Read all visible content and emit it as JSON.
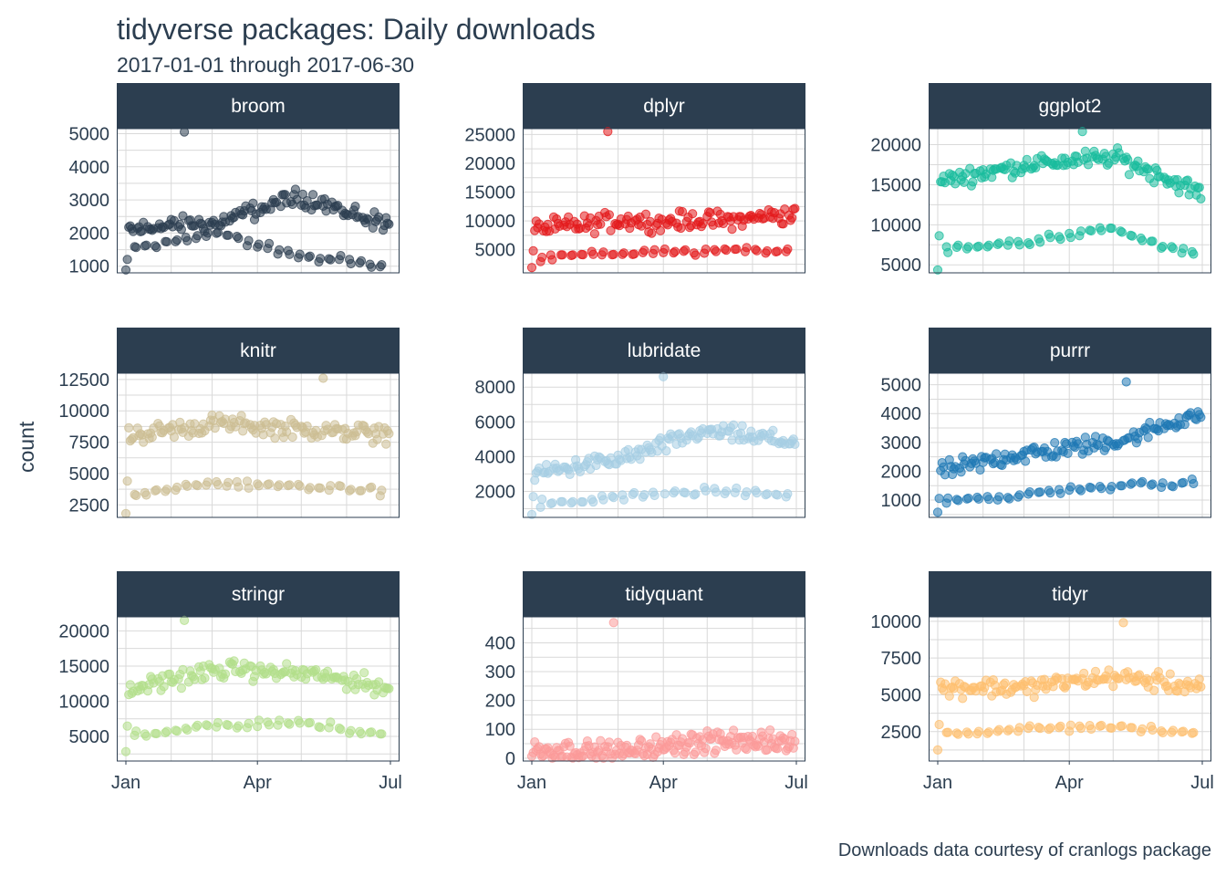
{
  "title": "tidyverse packages: Daily downloads",
  "subtitle": "2017-01-01 through 2017-06-30",
  "caption": "Downloads data courtesy of cranlogs package",
  "chart_data": {
    "type": "scatter",
    "facets": "wrap 3x3",
    "ylabel": "count",
    "xlabel": "",
    "x_range": [
      "2017-01-01",
      "2017-06-30"
    ],
    "x_ticks": [
      "Jan",
      "Apr",
      "Jul"
    ],
    "grid": true,
    "legend": "none",
    "panels": [
      {
        "name": "broom",
        "color": "#2c3e50",
        "ylim": [
          800,
          5150
        ],
        "y_ticks": [
          1000,
          2000,
          3000,
          4000,
          5000
        ],
        "y_tick_labels": [
          "1000",
          "2000",
          "3000",
          "4000",
          "5000"
        ],
        "weekday_mean": [
          2100,
          2300,
          3100,
          2250
        ],
        "weekend_mean": [
          1500,
          2000,
          1300,
          1000
        ],
        "peak": {
          "date": "2017-02-10",
          "value": 5050
        }
      },
      {
        "name": "dplyr",
        "color": "#e31a1c",
        "ylim": [
          1000,
          26000
        ],
        "y_ticks": [
          5000,
          10000,
          15000,
          20000,
          25000
        ],
        "y_tick_labels": [
          "5000",
          "10000",
          "15000",
          "20000",
          "25000"
        ],
        "weekday_mean": [
          8500,
          10000,
          10000,
          11000
        ],
        "weekend_mean": [
          3500,
          4500,
          4800,
          5000
        ],
        "peak": {
          "date": "2017-02-22",
          "value": 25500
        }
      },
      {
        "name": "ggplot2",
        "color": "#18BC9C",
        "ylim": [
          4000,
          22000
        ],
        "y_ticks": [
          5000,
          10000,
          15000,
          20000
        ],
        "y_tick_labels": [
          "5000",
          "10000",
          "15000",
          "20000"
        ],
        "weekday_mean": [
          15500,
          17500,
          18500,
          14000
        ],
        "weekend_mean": [
          6800,
          7800,
          9500,
          6000
        ],
        "peak": {
          "date": "2017-04-10",
          "value": 21800
        }
      },
      {
        "name": "knitr",
        "color": "#CCBE93",
        "ylim": [
          1500,
          13000
        ],
        "y_ticks": [
          2500,
          5000,
          7500,
          10000,
          12500
        ],
        "y_tick_labels": [
          "2500",
          "5000",
          "7500",
          "10000",
          "12500"
        ],
        "weekday_mean": [
          8000,
          9000,
          8500,
          8200
        ],
        "weekend_mean": [
          3200,
          4200,
          4000,
          3500
        ],
        "peak": {
          "date": "2017-05-16",
          "value": 12600
        }
      },
      {
        "name": "lubridate",
        "color": "#a6cee3",
        "ylim": [
          500,
          8800
        ],
        "y_ticks": [
          2000,
          4000,
          6000,
          8000
        ],
        "y_tick_labels": [
          "2000",
          "4000",
          "6000",
          "8000"
        ],
        "weekday_mean": [
          3000,
          3800,
          5500,
          4800
        ],
        "weekend_mean": [
          1200,
          1700,
          2000,
          1800
        ],
        "peak": {
          "date": "2017-04-01",
          "value": 8600
        }
      },
      {
        "name": "purrr",
        "color": "#1f78b4",
        "ylim": [
          400,
          5400
        ],
        "y_ticks": [
          1000,
          2000,
          3000,
          4000,
          5000
        ],
        "y_tick_labels": [
          "1000",
          "2000",
          "3000",
          "4000",
          "5000"
        ],
        "weekday_mean": [
          2000,
          2600,
          3000,
          4000
        ],
        "weekend_mean": [
          900,
          1200,
          1500,
          1600
        ],
        "peak": {
          "date": "2017-05-10",
          "value": 5100
        }
      },
      {
        "name": "stringr",
        "color": "#b2df8a",
        "ylim": [
          1500,
          22000
        ],
        "y_ticks": [
          5000,
          10000,
          15000,
          20000
        ],
        "y_tick_labels": [
          "5000",
          "10000",
          "15000",
          "20000"
        ],
        "weekday_mean": [
          11500,
          14500,
          14000,
          12000
        ],
        "weekend_mean": [
          5000,
          6500,
          7000,
          5000
        ],
        "peak": {
          "date": "2017-02-10",
          "value": 21500
        }
      },
      {
        "name": "tidyquant",
        "color": "#fb9a99",
        "ylim": [
          -10,
          490
        ],
        "y_ticks": [
          0,
          100,
          200,
          300,
          400
        ],
        "y_tick_labels": [
          "0",
          "100",
          "200",
          "300",
          "400"
        ],
        "weekday_mean": [
          35,
          25,
          70,
          65
        ],
        "weekend_mean": [
          10,
          10,
          30,
          40
        ],
        "peak": {
          "date": "2017-02-26",
          "value": 470
        }
      },
      {
        "name": "tidyr",
        "color": "#fdbf6f",
        "ylim": [
          500,
          10300
        ],
        "y_ticks": [
          2500,
          5000,
          7500,
          10000
        ],
        "y_tick_labels": [
          "2500",
          "5000",
          "7500",
          "10000"
        ],
        "weekday_mean": [
          5500,
          5500,
          6200,
          5500
        ],
        "weekend_mean": [
          2300,
          2700,
          2900,
          2400
        ],
        "peak": {
          "date": "2017-05-08",
          "value": 9900
        }
      }
    ]
  }
}
